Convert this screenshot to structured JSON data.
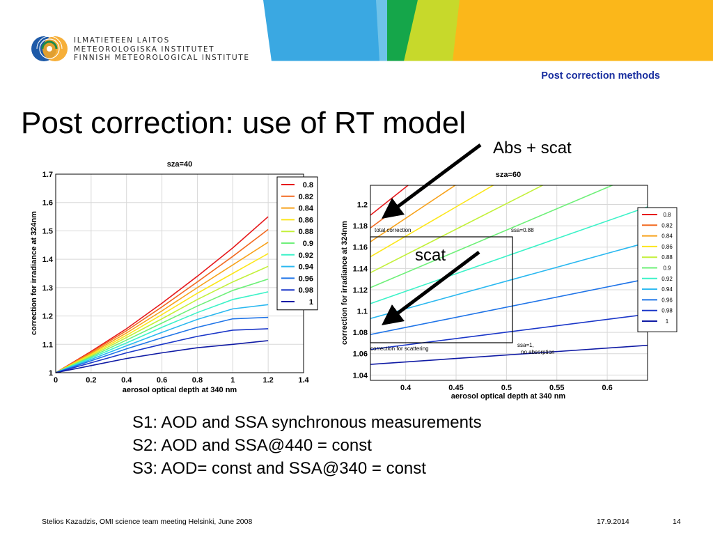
{
  "header": {
    "logo_lines": [
      "ILMATIETEEN LAITOS",
      "METEOROLOGISKA INSTITUTET",
      "FINNISH METEOROLOGICAL INSTITUTE"
    ],
    "section": "Post correction methods"
  },
  "slide": {
    "title": "Post correction: use of RT model",
    "annotation_abs_scat": "Abs + scat",
    "annotation_scat": "scat",
    "points": [
      "S1: AOD and SSA synchronous measurements",
      "S2: AOD and SSA@440 = const",
      "S3: AOD= const and SSA@340 = const"
    ]
  },
  "footer": {
    "author": "Stelios Kazadzis, OMI science team meeting Helsinki, June 2008",
    "date": "17.9.2014",
    "page": "14"
  },
  "colors": [
    "#e6191c",
    "#f26a21",
    "#f7a21b",
    "#fce61b",
    "#c3f03a",
    "#6ef079",
    "#3cf2c8",
    "#2ab8f0",
    "#1f74e8",
    "#1a36c8",
    "#0f1aa4"
  ],
  "chart_data": [
    {
      "type": "line",
      "title": "sza=40",
      "xlabel": "aerosol optical depth at 340 nm",
      "ylabel": "correction for irradiance at 324nm",
      "xlim": [
        0,
        1.4
      ],
      "ylim": [
        1,
        1.7
      ],
      "xticks": [
        "0",
        "0.2",
        "0.4",
        "0.6",
        "0.8",
        "1",
        "1.2",
        "1.4"
      ],
      "yticks": [
        "1",
        "1.1",
        "1.2",
        "1.3",
        "1.4",
        "1.5",
        "1.6",
        "1.7"
      ],
      "grid": true,
      "legend": "top-right",
      "x": [
        0,
        0.2,
        0.4,
        0.6,
        0.8,
        1.0,
        1.2
      ],
      "series": [
        {
          "name": "0.8",
          "values": [
            1.0,
            1.075,
            1.155,
            1.245,
            1.34,
            1.44,
            1.55
          ]
        },
        {
          "name": "0.82",
          "values": [
            1.0,
            1.072,
            1.148,
            1.232,
            1.32,
            1.41,
            1.505
          ]
        },
        {
          "name": "0.84",
          "values": [
            1.0,
            1.068,
            1.14,
            1.218,
            1.3,
            1.38,
            1.46
          ]
        },
        {
          "name": "0.86",
          "values": [
            1.0,
            1.064,
            1.132,
            1.205,
            1.28,
            1.35,
            1.42
          ]
        },
        {
          "name": "0.88",
          "values": [
            1.0,
            1.06,
            1.124,
            1.19,
            1.258,
            1.32,
            1.375
          ]
        },
        {
          "name": "0.9",
          "values": [
            1.0,
            1.056,
            1.115,
            1.175,
            1.235,
            1.29,
            1.33
          ]
        },
        {
          "name": "0.92",
          "values": [
            1.0,
            1.052,
            1.105,
            1.16,
            1.212,
            1.258,
            1.285
          ]
        },
        {
          "name": "0.94",
          "values": [
            1.0,
            1.047,
            1.095,
            1.142,
            1.188,
            1.225,
            1.24
          ]
        },
        {
          "name": "0.96",
          "values": [
            1.0,
            1.042,
            1.084,
            1.123,
            1.16,
            1.19,
            1.195
          ]
        },
        {
          "name": "0.98",
          "values": [
            1.0,
            1.035,
            1.07,
            1.1,
            1.128,
            1.15,
            1.155
          ]
        },
        {
          "name": "1",
          "values": [
            1.0,
            1.025,
            1.05,
            1.07,
            1.088,
            1.1,
            1.113
          ]
        }
      ]
    },
    {
      "type": "line",
      "title": "sza=60",
      "xlabel": "aerosol optical depth at 340 nm",
      "ylabel": "correction for irradiance at 324nm",
      "xlim": [
        0.365,
        0.64
      ],
      "ylim": [
        1.035,
        1.218
      ],
      "xticks": [
        "0.4",
        "0.45",
        "0.5",
        "0.55",
        "0.6"
      ],
      "xtick_values": [
        0.4,
        0.45,
        0.5,
        0.55,
        0.6
      ],
      "yticks": [
        "1.04",
        "1.06",
        "1.08",
        "1.1",
        "1.12",
        "1.14",
        "1.16",
        "1.18",
        "1.2"
      ],
      "ytick_values": [
        1.04,
        1.06,
        1.08,
        1.1,
        1.12,
        1.14,
        1.16,
        1.18,
        1.2
      ],
      "grid": true,
      "legend": "right",
      "annotations": [
        "total correction",
        "ssa=0.88",
        "correction for scattering",
        "ssa=1,",
        "no absorption"
      ],
      "series": [
        {
          "name": "0.8",
          "x0": 0.365,
          "y0": 1.19,
          "slope": 0.75
        },
        {
          "name": "0.82",
          "x0": 0.365,
          "y0": 1.178,
          "slope": 0.7
        },
        {
          "name": "0.84",
          "x0": 0.365,
          "y0": 1.165,
          "slope": 0.63
        },
        {
          "name": "0.86",
          "x0": 0.365,
          "y0": 1.151,
          "slope": 0.55
        },
        {
          "name": "0.88",
          "x0": 0.365,
          "y0": 1.136,
          "slope": 0.48
        },
        {
          "name": "0.9",
          "x0": 0.365,
          "y0": 1.122,
          "slope": 0.4
        },
        {
          "name": "0.92",
          "x0": 0.365,
          "y0": 1.107,
          "slope": 0.33
        },
        {
          "name": "0.94",
          "x0": 0.365,
          "y0": 1.093,
          "slope": 0.26
        },
        {
          "name": "0.96",
          "x0": 0.365,
          "y0": 1.078,
          "slope": 0.19
        },
        {
          "name": "0.98",
          "x0": 0.365,
          "y0": 1.064,
          "slope": 0.12
        },
        {
          "name": "1",
          "x0": 0.365,
          "y0": 1.05,
          "slope": 0.065
        }
      ]
    }
  ]
}
